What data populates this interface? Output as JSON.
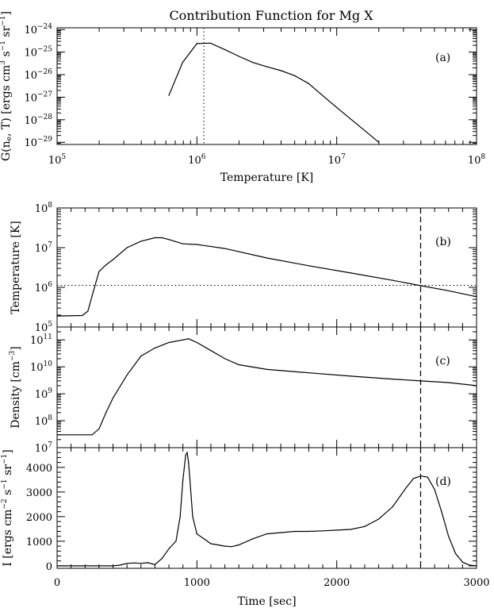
{
  "figure": {
    "title": "Contribution Function for Mg X"
  },
  "chart_data": [
    {
      "id": "a",
      "type": "line",
      "panel_label": "(a)",
      "xlabel": "Temperature [K]",
      "ylabel_parts": [
        "G(n",
        "e",
        ", T) [ergs cm",
        "3",
        " s",
        "−1",
        " sr",
        "−1",
        "]"
      ],
      "xscale": "log",
      "yscale": "log",
      "xlim": [
        100000,
        100000000
      ],
      "ylim": [
        8e-30,
        1.2e-24
      ],
      "xticks": [
        {
          "v": 100000,
          "b": "10",
          "e": "5"
        },
        {
          "v": 1000000,
          "b": "10",
          "e": "6"
        },
        {
          "v": 10000000,
          "b": "10",
          "e": "7"
        },
        {
          "v": 100000000,
          "b": "10",
          "e": "8"
        }
      ],
      "yticks": [
        {
          "v": 1e-29,
          "b": "10",
          "e": "−29"
        },
        {
          "v": 1e-28,
          "b": "10",
          "e": "−28"
        },
        {
          "v": 1e-27,
          "b": "10",
          "e": "−27"
        },
        {
          "v": 1e-26,
          "b": "10",
          "e": "−26"
        },
        {
          "v": 1e-25,
          "b": "10",
          "e": "−25"
        },
        {
          "v": 1e-24,
          "b": "10",
          "e": "−24"
        }
      ],
      "series": [
        {
          "x": [
            630000,
            790000,
            1000000,
            1250000,
            1580000,
            2000000,
            2500000,
            3200000,
            4000000,
            5000000,
            6300000,
            7900000,
            10000000,
            20000000
          ],
          "y": [
            1.2e-27,
            3.5e-26,
            2.4e-25,
            2.5e-25,
            1.3e-25,
            6.5e-26,
            3.5e-26,
            2.2e-26,
            1.5e-26,
            9e-27,
            4e-27,
            1.2e-27,
            3.5e-28,
            1e-29
          ]
        }
      ],
      "vline": {
        "x": 1120000,
        "style": "dotted"
      }
    },
    {
      "id": "b",
      "type": "line",
      "panel_label": "(b)",
      "ylabel": "Temperature [K]",
      "yscale": "log",
      "xlim": [
        0,
        3000
      ],
      "ylim": [
        100000,
        100000000
      ],
      "yticks": [
        {
          "v": 100000,
          "b": "10",
          "e": "5"
        },
        {
          "v": 1000000,
          "b": "10",
          "e": "6"
        },
        {
          "v": 10000000,
          "b": "10",
          "e": "7"
        },
        {
          "v": 100000000,
          "b": "10",
          "e": "8"
        }
      ],
      "series": [
        {
          "x": [
            0,
            180,
            220,
            260,
            300,
            350,
            400,
            500,
            600,
            700,
            750,
            800,
            900,
            1000,
            1200,
            1500,
            1800,
            2100,
            2400,
            2600,
            2800,
            3000
          ],
          "y": [
            190000,
            195000,
            250000,
            800000,
            2500000,
            3700000,
            5000000,
            10000000,
            14500000,
            17800000,
            17800000,
            16000000,
            12500000,
            12000000,
            9500000,
            5500000,
            3500000,
            2300000,
            1500000,
            1100000,
            820000,
            580000
          ]
        }
      ],
      "hline": {
        "y": 1120000,
        "style": "dotted"
      },
      "vline": {
        "x": 2600,
        "style": "dashed"
      }
    },
    {
      "id": "c",
      "type": "line",
      "panel_label": "(c)",
      "ylabel_parts": [
        "Density [cm",
        "−3",
        "]"
      ],
      "yscale": "log",
      "xlim": [
        0,
        3000
      ],
      "ylim": [
        10000000,
        300000000000
      ],
      "yticks": [
        {
          "v": 10000000,
          "b": "10",
          "e": "7"
        },
        {
          "v": 100000000,
          "b": "10",
          "e": "8"
        },
        {
          "v": 1000000000,
          "b": "10",
          "e": "9"
        },
        {
          "v": 10000000000,
          "b": "10",
          "e": "10"
        },
        {
          "v": 100000000000,
          "b": "10",
          "e": "11"
        }
      ],
      "series": [
        {
          "x": [
            0,
            250,
            300,
            350,
            400,
            500,
            600,
            700,
            800,
            900,
            940,
            1000,
            1100,
            1200,
            1300,
            1500,
            1800,
            2100,
            2400,
            2600,
            2800,
            3000
          ],
          "y": [
            30000000,
            30000000,
            50000000,
            200000000,
            700000000,
            5000000000,
            25000000000,
            50000000000,
            80000000000,
            100000000000,
            110000000000,
            80000000000,
            40000000000,
            20000000000,
            12000000000,
            8000000000,
            6000000000,
            4500000000,
            3500000000,
            3000000000,
            2600000000,
            2000000000
          ]
        }
      ],
      "vline": {
        "x": 2600,
        "style": "dashed"
      }
    },
    {
      "id": "d",
      "type": "line",
      "panel_label": "(d)",
      "xlabel": "Time [sec]",
      "ylabel_parts": [
        "I [ergs cm",
        "−2",
        " s",
        "−1",
        " sr",
        "−1",
        "]"
      ],
      "yscale": "linear",
      "xlim": [
        0,
        3000
      ],
      "ylim": [
        -100,
        4800
      ],
      "xticks": [
        {
          "v": 0,
          "t": "0"
        },
        {
          "v": 1000,
          "t": "1000"
        },
        {
          "v": 2000,
          "t": "2000"
        },
        {
          "v": 3000,
          "t": "3000"
        }
      ],
      "yticks": [
        {
          "v": 0,
          "t": "0"
        },
        {
          "v": 1000,
          "t": "1000"
        },
        {
          "v": 2000,
          "t": "2000"
        },
        {
          "v": 3000,
          "t": "3000"
        },
        {
          "v": 4000,
          "t": "4000"
        }
      ],
      "series": [
        {
          "x": [
            0,
            400,
            450,
            500,
            550,
            600,
            650,
            700,
            750,
            800,
            850,
            880,
            900,
            920,
            930,
            940,
            950,
            970,
            1000,
            1050,
            1100,
            1150,
            1200,
            1250,
            1300,
            1400,
            1500,
            1600,
            1700,
            1800,
            1900,
            2000,
            2100,
            2200,
            2300,
            2400,
            2500,
            2550,
            2600,
            2650,
            2700,
            2750,
            2800,
            2850,
            2900,
            2950,
            3000
          ],
          "y": [
            0,
            0,
            30,
            100,
            120,
            100,
            130,
            50,
            300,
            700,
            1000,
            2000,
            3500,
            4500,
            4600,
            4200,
            3500,
            2000,
            1300,
            1100,
            900,
            850,
            800,
            780,
            850,
            1100,
            1300,
            1350,
            1400,
            1400,
            1420,
            1450,
            1480,
            1600,
            1900,
            2400,
            3200,
            3550,
            3650,
            3600,
            3100,
            2200,
            1200,
            500,
            150,
            30,
            0
          ]
        }
      ],
      "vline": {
        "x": 2600,
        "style": "dashed"
      }
    }
  ]
}
